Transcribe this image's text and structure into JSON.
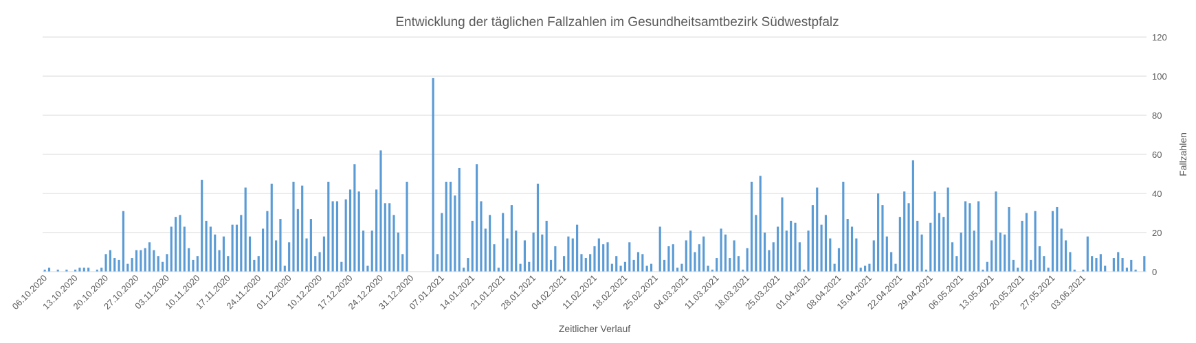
{
  "chart_data": {
    "type": "bar",
    "title": "Entwicklung der täglichen Fallzahlen im Gesundheitsamtbezirk Südwestpfalz",
    "xlabel": "Zeitlicher Verlauf",
    "ylabel": "Fallzahlen",
    "ylim": [
      0,
      120
    ],
    "y_ticks": [
      0,
      20,
      40,
      60,
      80,
      100,
      120
    ],
    "y_axis_position": "right",
    "grid": true,
    "legend": "none",
    "color": "#5b9bd5",
    "x_tick_labels": [
      "06.10.2020",
      "13.10.2020",
      "20.10.2020",
      "27.10.2020",
      "03.11.2020",
      "10.11.2020",
      "17.11.2020",
      "24.11.2020",
      "01.12.2020",
      "10.12.2020",
      "17.12.2020",
      "24.12.2020",
      "31.12.2020",
      "07.01.2021",
      "14.01.2021",
      "21.01.2021",
      "28.01.2021",
      "04.02.2021",
      "11.02.2021",
      "18.02.2021",
      "25.02.2021",
      "04.03.2021",
      "11.03.2021",
      "18.03.2021",
      "25.03.2021",
      "01.04.2021",
      "08.04.2021",
      "15.04.2021",
      "22.04.2021",
      "29.04.2021",
      "06.05.2021",
      "13.05.2021",
      "20.05.2021",
      "27.05.2021",
      "03.06.2021"
    ],
    "values": [
      1,
      2,
      0,
      1,
      0,
      1,
      0,
      1,
      2,
      2,
      2,
      0,
      1,
      2,
      9,
      11,
      7,
      6,
      31,
      4,
      7,
      11,
      11,
      12,
      15,
      11,
      8,
      5,
      9,
      23,
      28,
      29,
      23,
      12,
      6,
      8,
      47,
      26,
      23,
      19,
      11,
      18,
      8,
      24,
      24,
      29,
      43,
      18,
      6,
      8,
      22,
      31,
      45,
      16,
      27,
      3,
      15,
      46,
      32,
      44,
      17,
      27,
      8,
      10,
      18,
      46,
      36,
      36,
      5,
      37,
      42,
      55,
      41,
      21,
      3,
      21,
      42,
      62,
      35,
      35,
      29,
      20,
      9,
      46,
      0,
      0,
      0,
      0,
      0,
      99,
      9,
      30,
      46,
      46,
      39,
      53,
      2,
      7,
      26,
      55,
      36,
      22,
      29,
      14,
      2,
      30,
      17,
      34,
      21,
      4,
      16,
      5,
      20,
      45,
      19,
      26,
      6,
      13,
      1,
      8,
      18,
      17,
      24,
      9,
      7,
      9,
      13,
      17,
      14,
      15,
      4,
      8,
      3,
      5,
      15,
      6,
      10,
      9,
      3,
      4,
      0,
      23,
      6,
      13,
      14,
      2,
      4,
      16,
      21,
      10,
      14,
      18,
      3,
      1,
      7,
      22,
      19,
      7,
      16,
      8,
      1,
      12,
      46,
      29,
      49,
      20,
      11,
      15,
      23,
      38,
      21,
      26,
      25,
      15,
      1,
      21,
      34,
      43,
      24,
      29,
      17,
      4,
      12,
      46,
      27,
      23,
      17,
      2,
      3,
      4,
      16,
      40,
      34,
      18,
      10,
      4,
      28,
      41,
      35,
      57,
      26,
      19,
      1,
      25,
      41,
      30,
      28,
      43,
      15,
      8,
      20,
      36,
      35,
      21,
      36,
      1,
      5,
      16,
      41,
      20,
      19,
      33,
      6,
      2,
      26,
      30,
      6,
      31,
      13,
      8,
      2,
      31,
      33,
      22,
      16,
      10,
      1,
      0,
      1,
      18,
      8,
      7,
      9,
      3,
      0,
      7,
      10,
      7,
      2,
      6,
      1,
      0,
      8
    ]
  }
}
